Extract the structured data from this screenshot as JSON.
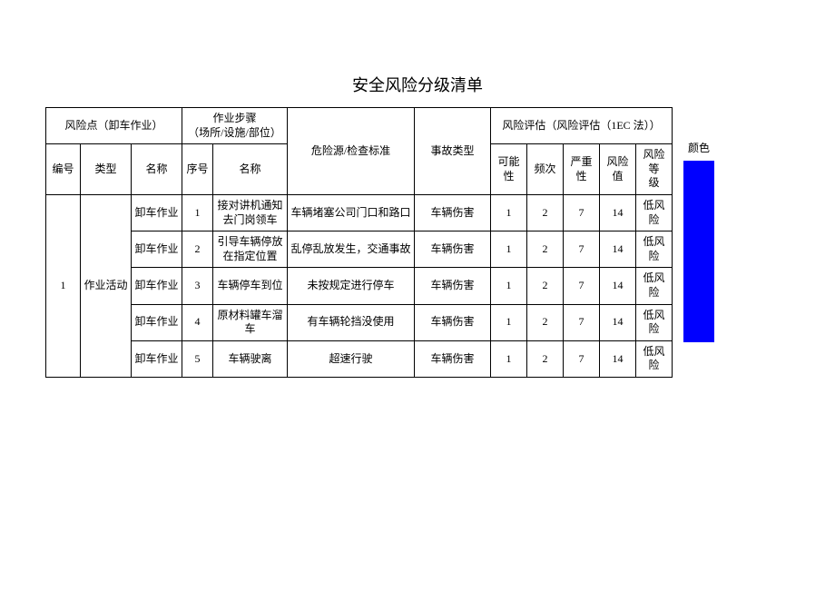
{
  "title": "安全风险分级清单",
  "headers": {
    "risk_point_group": "风险点（卸车作业）",
    "work_step_group": "作业步骤\n（场所/设施/部位）",
    "hazard_source": "危险源/检查标准",
    "accident_type": "事故类型",
    "risk_eval_group": "风险评估（风险评估（1EC 法））",
    "risk_point_id": "编号",
    "risk_point_type": "类型",
    "risk_point_name": "名称",
    "step_seq": "序号",
    "step_name": "名称",
    "likelihood": "可能性",
    "frequency": "频次",
    "severity": "严重性",
    "risk_value": "风险值",
    "risk_level": "风险等\n级",
    "color_label": "颜色"
  },
  "risk_point": {
    "id": "1",
    "type": "作业活动"
  },
  "rows": [
    {
      "name": "卸车作业",
      "seq": "1",
      "step": "接对讲机通知\n去门岗领车",
      "hazard": "车辆堵塞公司门口和路口",
      "accident": "车辆伤害",
      "l": "1",
      "f": "2",
      "s": "7",
      "v": "14",
      "level": "低风险"
    },
    {
      "name": "卸车作业",
      "seq": "2",
      "step": "引导车辆停放\n在指定位置",
      "hazard": "乱停乱放发生，交通事故",
      "accident": "车辆伤害",
      "l": "1",
      "f": "2",
      "s": "7",
      "v": "14",
      "level": "低风险"
    },
    {
      "name": "卸车作业",
      "seq": "3",
      "step": "车辆停车到位",
      "hazard": "未按规定进行停车",
      "accident": "车辆伤害",
      "l": "1",
      "f": "2",
      "s": "7",
      "v": "14",
      "level": "低风险"
    },
    {
      "name": "卸车作业",
      "seq": "4",
      "step": "原材料罐车溜\n车",
      "hazard": "有车辆轮挡没使用",
      "accident": "车辆伤害",
      "l": "1",
      "f": "2",
      "s": "7",
      "v": "14",
      "level": "低风险"
    },
    {
      "name": "卸车作业",
      "seq": "5",
      "step": "车辆驶离",
      "hazard": "超速行驶",
      "accident": "车辆伤害",
      "l": "1",
      "f": "2",
      "s": "7",
      "v": "14",
      "level": "低风险"
    }
  ],
  "color_block": "#0000ff",
  "colwidths": {
    "id": 38,
    "type": 56,
    "name": 56,
    "seq": 34,
    "step": 82,
    "hazard": 140,
    "accident": 84,
    "l": 40,
    "f": 40,
    "s": 40,
    "v": 40,
    "level": 40
  }
}
